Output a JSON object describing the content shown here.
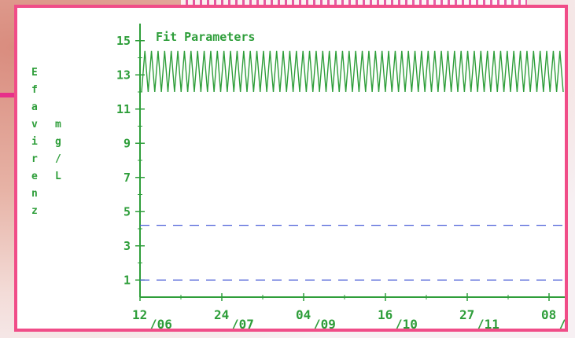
{
  "chart_data": {
    "type": "line",
    "title": "Fit Parameters",
    "ylabel_drug": [
      "E",
      "f",
      "a",
      "v",
      "i",
      "r",
      "e",
      "n",
      "z"
    ],
    "ylabel_unit": [
      "m",
      "g",
      "/",
      "L"
    ],
    "y_ticks": [
      "15",
      "13",
      "11",
      "9",
      "7",
      "5",
      "3",
      "1"
    ],
    "x_ticks": [
      {
        "day": "12",
        "month": "06"
      },
      {
        "day": "24",
        "month": "07"
      },
      {
        "day": "04",
        "month": "09"
      },
      {
        "day": "16",
        "month": "10"
      },
      {
        "day": "27",
        "month": "11"
      },
      {
        "day": "08",
        "month": "/"
      }
    ],
    "ylim": [
      0,
      16
    ],
    "series": [
      {
        "oscillation_min": 12.0,
        "oscillation_max": 14.4,
        "cycles": 64,
        "color": "#2e9e3a"
      }
    ],
    "reference_lines": [
      {
        "y": 4.2,
        "style": "dashed",
        "color": "#4b5fd8"
      },
      {
        "y": 1.0,
        "style": "dashed",
        "color": "#4b5fd8"
      }
    ],
    "axis_color": "#2e9e3a"
  }
}
